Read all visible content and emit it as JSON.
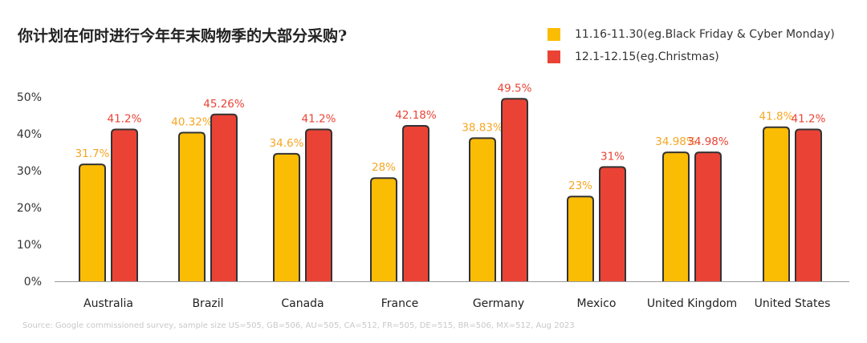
{
  "chart_data": {
    "type": "bar",
    "title": "你计划在何时进行今年年末购物季的大部分采购?",
    "categories": [
      "Australia",
      "Brazil",
      "Canada",
      "France",
      "Germany",
      "Mexico",
      "United Kingdom",
      "United States"
    ],
    "series": [
      {
        "name": "11.16-11.30(eg.Black Friday & Cyber Monday)",
        "color": "#FBBC04",
        "label_color": "#F6A623",
        "values": [
          31.7,
          40.32,
          34.6,
          28,
          38.83,
          23,
          34.98,
          41.8
        ],
        "labels": [
          "31.7%",
          "40.32%",
          "34.6%",
          "28%",
          "38.83%",
          "23%",
          "34.98%",
          "41.8%"
        ]
      },
      {
        "name": "12.1-12.15(eg.Christmas)",
        "color": "#EA4335",
        "label_color": "#EA4335",
        "values": [
          41.2,
          45.26,
          41.2,
          42.18,
          49.5,
          31,
          34.98,
          41.2
        ],
        "labels": [
          "41.2%",
          "45.26%",
          "41.2%",
          "42.18%",
          "49.5%",
          "31%",
          "34.98%",
          "41.2%"
        ]
      }
    ],
    "yticks": [
      "0%",
      "10%",
      "20%",
      "30%",
      "40%",
      "50%"
    ],
    "ylim": [
      0,
      50
    ],
    "legend_position": "top-right",
    "source": "Source: Google commissioned survey, sample size US=505, GB=506, AU=505, CA=512, FR=505, DE=515, BR=506, MX=512, Aug 2023"
  }
}
